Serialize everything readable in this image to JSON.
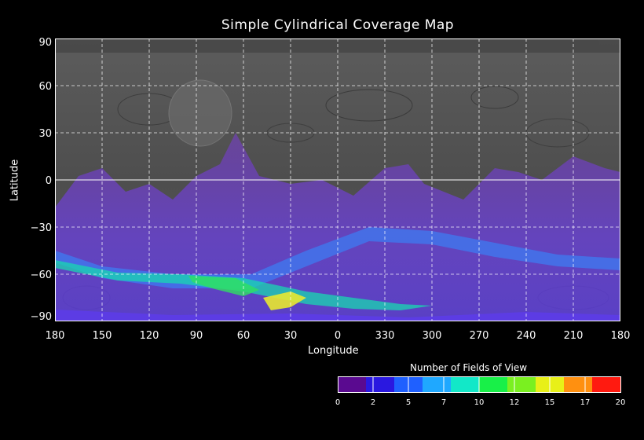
{
  "title": "Simple Cylindrical Coverage Map",
  "map_data": {
    "projection": "simple cylindrical",
    "x_axis": {
      "label": "Longitude",
      "ticks": [
        "180",
        "150",
        "120",
        "90",
        "60",
        "30",
        "0",
        "330",
        "300",
        "270",
        "240",
        "210",
        "180"
      ]
    },
    "y_axis": {
      "label": "Latitude",
      "ticks": [
        "90",
        "60",
        "30",
        "0",
        "−30",
        "−60",
        "−90"
      ],
      "range": [
        -90,
        90
      ]
    },
    "grid": true,
    "coverage_band_latitude": [
      -90,
      10
    ]
  },
  "colorbar": {
    "title": "Number of Fields of View",
    "min": 0,
    "max": 20,
    "ticks": [
      "0",
      "2",
      "5",
      "7",
      "10",
      "12",
      "15",
      "17",
      "20"
    ],
    "colors": [
      "#5a0a90",
      "#2a18e0",
      "#1f60ff",
      "#1fa8ff",
      "#12e8c8",
      "#18f048",
      "#7af020",
      "#e8f018",
      "#ff9010",
      "#ff1a10"
    ]
  }
}
